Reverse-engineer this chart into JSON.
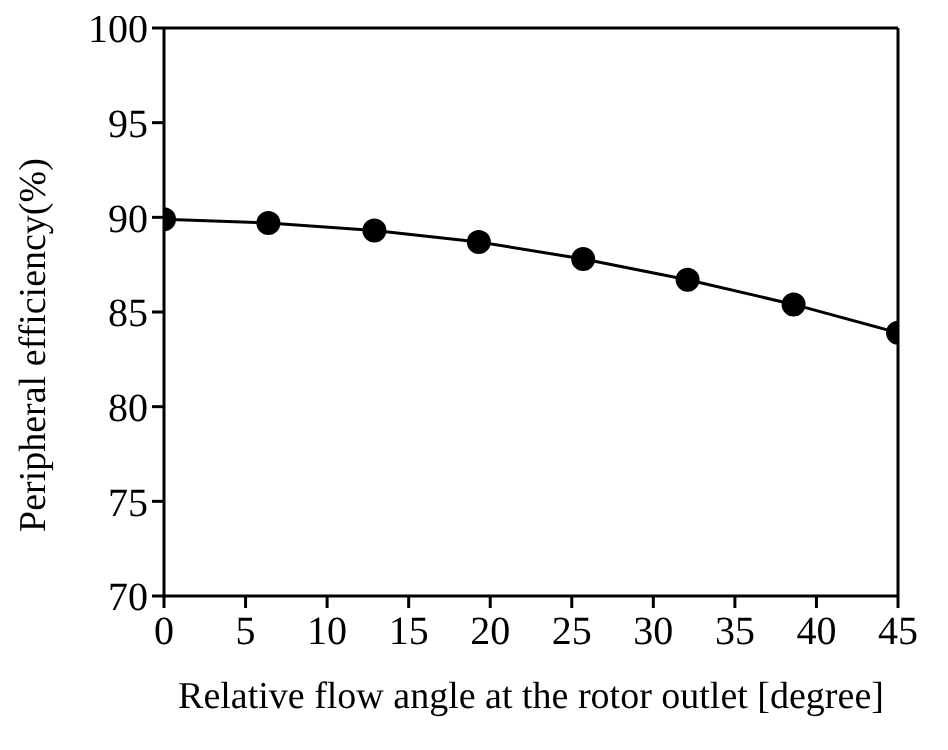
{
  "chart_data": {
    "type": "line",
    "xlabel": "Relative flow angle at the rotor outlet [degree]",
    "ylabel": "Peripheral efficiency(%)",
    "x": [
      0,
      6.4,
      12.9,
      19.3,
      25.7,
      32.1,
      38.6,
      45
    ],
    "series": [
      {
        "color": "#000000",
        "values": [
          89.9,
          89.7,
          89.3,
          88.7,
          87.8,
          86.7,
          85.4,
          83.9
        ]
      }
    ],
    "xlim": [
      0,
      45
    ],
    "xticks": [
      0,
      5,
      10,
      15,
      20,
      25,
      30,
      35,
      40,
      45
    ],
    "ylim": [
      70,
      100
    ],
    "yticks": [
      70,
      75,
      80,
      85,
      90,
      95,
      100
    ],
    "grid": false,
    "legend": false,
    "marker": "circle",
    "line_style": "solid"
  }
}
